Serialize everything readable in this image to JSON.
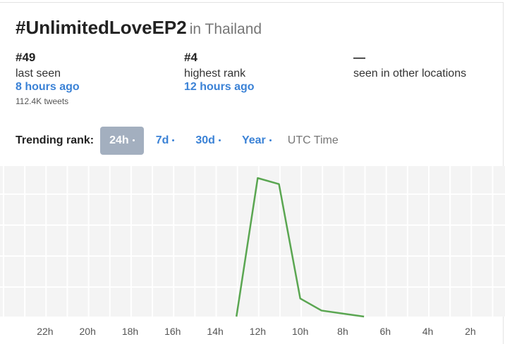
{
  "header": {
    "title": "#UnlimitedLoveEP2",
    "subtitle": "in Thailand"
  },
  "stats": [
    {
      "rank": "#49",
      "label": "last seen",
      "time": "8 hours ago",
      "note": "112.4K tweets"
    },
    {
      "rank": "#4",
      "label": "highest rank",
      "time": "12 hours ago"
    },
    {
      "rank": "—",
      "label": "seen in other locations"
    }
  ],
  "controls": {
    "label": "Trending rank:",
    "tabs": [
      "24h",
      "7d",
      "30d",
      "Year"
    ],
    "active": 0,
    "timezone": "UTC Time"
  },
  "chart_data": {
    "type": "line",
    "color": "#5aa651",
    "x": [
      13,
      12,
      11,
      10,
      9,
      8,
      7
    ],
    "values": [
      50,
      4,
      6,
      44,
      48,
      49,
      50
    ],
    "xlim": [
      24.12,
      0.37
    ],
    "ylim": [
      0,
      50
    ],
    "xticks": [
      {
        "value": 22,
        "label": "22h"
      },
      {
        "value": 20,
        "label": "20h"
      },
      {
        "value": 18,
        "label": "18h"
      },
      {
        "value": 16,
        "label": "16h"
      },
      {
        "value": 14,
        "label": "14h"
      },
      {
        "value": 12,
        "label": "12h"
      },
      {
        "value": 10,
        "label": "10h"
      },
      {
        "value": 8,
        "label": "8h"
      },
      {
        "value": 6,
        "label": "6h"
      },
      {
        "value": 4,
        "label": "4h"
      },
      {
        "value": 2,
        "label": "2h"
      }
    ]
  }
}
